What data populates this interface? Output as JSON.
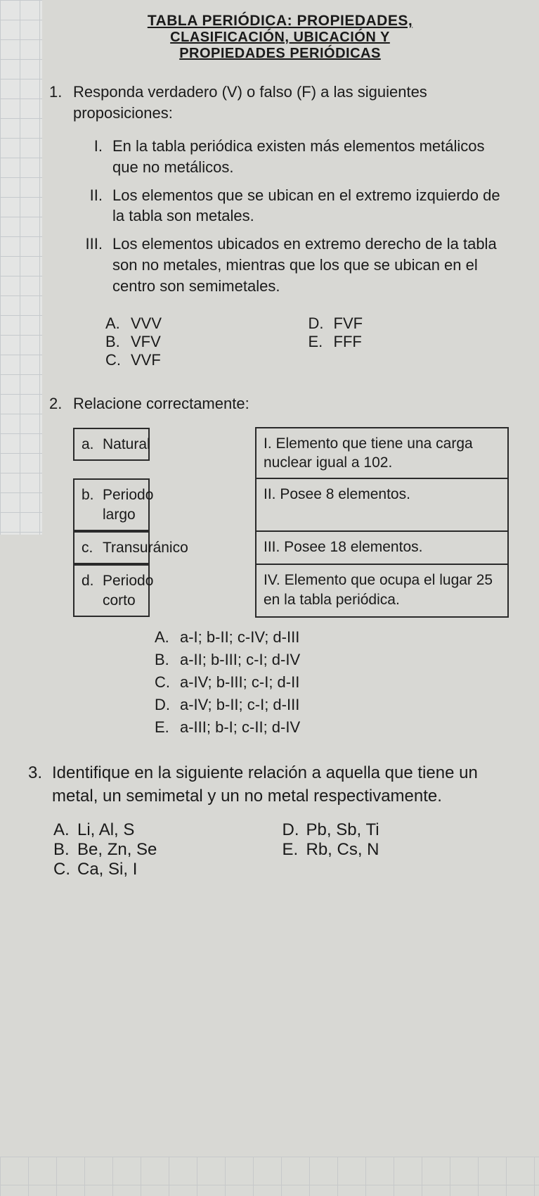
{
  "title": {
    "line1": "TABLA PERIÓDICA: PROPIEDADES,",
    "line2": "CLASIFICACIÓN, UBICACIÓN Y",
    "line3": "PROPIEDADES PERIÓDICAS"
  },
  "q1": {
    "num": "1.",
    "stem": "Responda verdadero (V) o falso (F) a las siguientes proposiciones:",
    "items": [
      {
        "rn": "I.",
        "text": "En la tabla periódica existen más elementos metálicos que no metálicos."
      },
      {
        "rn": "II.",
        "text": "Los elementos que se ubican en el extremo izquierdo de la tabla son metales."
      },
      {
        "rn": "III.",
        "text": "Los elementos ubicados en extremo derecho de la tabla son no metales, mientras que los que se ubican en el centro son semimetales."
      }
    ],
    "optsL": [
      {
        "l": "A.",
        "t": "VVV"
      },
      {
        "l": "B.",
        "t": "VFV"
      },
      {
        "l": "C.",
        "t": "VVF"
      }
    ],
    "optsR": [
      {
        "l": "D.",
        "t": "FVF"
      },
      {
        "l": "E.",
        "t": "FFF"
      }
    ]
  },
  "q2": {
    "num": "2.",
    "stem": "Relacione correctamente:",
    "rows": [
      {
        "lk": "a.",
        "lt": "Natural",
        "rt": "I. Elemento que tiene una carga nuclear igual a 102."
      },
      {
        "lk": "b.",
        "lt": "Periodo largo",
        "rt": "II. Posee 8 elementos."
      },
      {
        "lk": "c.",
        "lt": "Transuránico",
        "rt": "III. Posee 18 elementos."
      },
      {
        "lk": "d.",
        "lt": "Periodo corto",
        "rt": "IV. Elemento que ocupa el lugar 25 en la tabla periódica."
      }
    ],
    "opts": [
      {
        "l": "A.",
        "t": "a-I; b-II; c-IV; d-III"
      },
      {
        "l": "B.",
        "t": "a-II; b-III; c-I; d-IV"
      },
      {
        "l": "C.",
        "t": "a-IV; b-III; c-I; d-II"
      },
      {
        "l": "D.",
        "t": "a-IV; b-II; c-I; d-III"
      },
      {
        "l": "E.",
        "t": "a-III; b-I; c-II; d-IV"
      }
    ]
  },
  "q3": {
    "num": "3.",
    "stem": "Identifique en la siguiente relación a aquella que tiene un metal, un semimetal y un no metal respectivamente.",
    "optsL": [
      {
        "l": "A.",
        "t": "Li, Al, S"
      },
      {
        "l": "B.",
        "t": "Be, Zn, Se"
      },
      {
        "l": "C.",
        "t": "Ca, Si, I"
      }
    ],
    "optsR": [
      {
        "l": "D.",
        "t": "Pb, Sb, Ti"
      },
      {
        "l": "E.",
        "t": "Rb, Cs, N"
      }
    ]
  }
}
